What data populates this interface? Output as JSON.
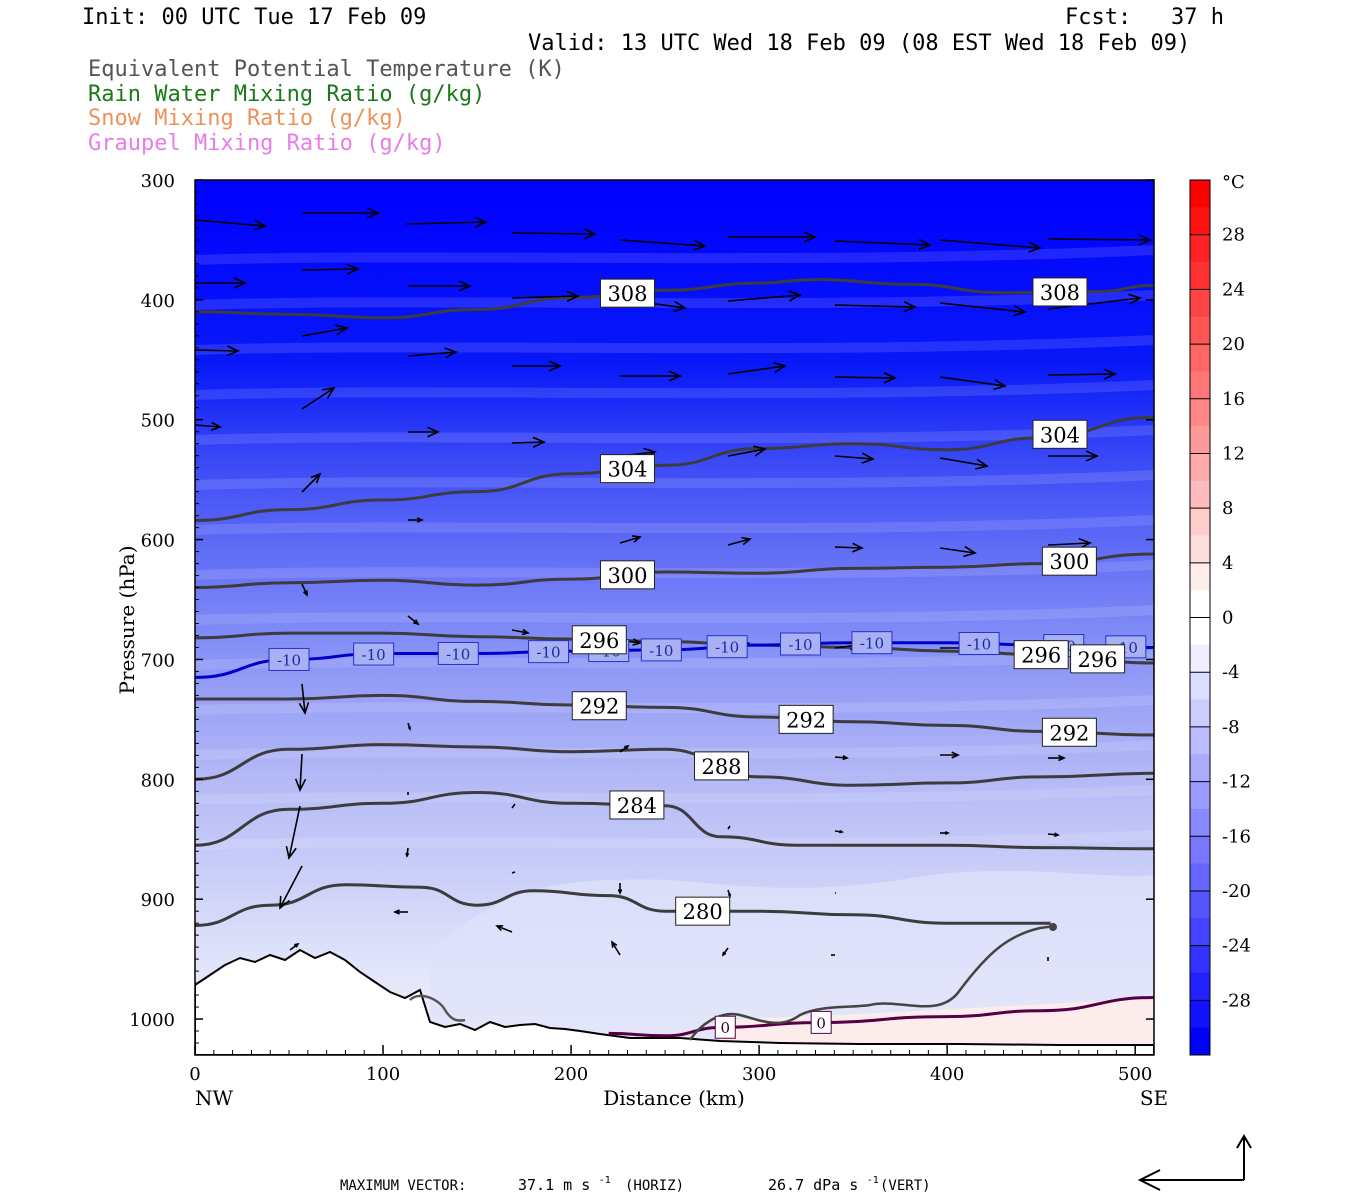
{
  "header": {
    "init": "Init: 00 UTC Tue 17 Feb 09",
    "fcst": "Fcst:   37 h",
    "valid": "Valid: 13 UTC Wed 18 Feb 09 (08 EST Wed 18 Feb 09)",
    "fields": [
      {
        "text": "Equivalent Potential Temperature (K)",
        "color": "#555555"
      },
      {
        "text": "Rain Water Mixing Ratio (g/kg)",
        "color": "#1a7a1a"
      },
      {
        "text": "Snow Mixing Ratio (g/kg)",
        "color": "#f0915a"
      },
      {
        "text": "Graupel Mixing Ratio (g/kg)",
        "color": "#e87de8"
      }
    ]
  },
  "footer": {
    "max_vector_label": "MAXIMUM VECTOR:",
    "horiz_value": "37.1 m s",
    "horiz_exp": "-1",
    "horiz_tag": "(HORIZ)",
    "vert_value": "26.7 dPa s",
    "vert_exp": "-1",
    "vert_tag": "(VERT)"
  },
  "chart_data": {
    "type": "heatmap",
    "xlabel": "Distance (km)",
    "ylabel": "Pressure (hPa)",
    "xlim": [
      0,
      510
    ],
    "ylim": [
      1030,
      300
    ],
    "x_ticks": [
      0,
      100,
      200,
      300,
      400,
      500
    ],
    "y_ticks": [
      300,
      400,
      500,
      600,
      700,
      800,
      900,
      1000
    ],
    "x_end_labels": {
      "left": "NW",
      "right": "SE"
    },
    "colorbar": {
      "unit": "°C",
      "tick_labels": [
        "28",
        "24",
        "20",
        "16",
        "12",
        "8",
        "4",
        "0",
        "-4",
        "-8",
        "-12",
        "-16",
        "-20",
        "-24",
        "-28"
      ],
      "low_color": "#0000ff",
      "zero_color": "#ffffff",
      "high_color": "#ff0000"
    },
    "theta_e_contours": [
      {
        "value": 308,
        "label": "308",
        "points": [
          [
            0,
            410
          ],
          [
            50,
            412
          ],
          [
            100,
            415
          ],
          [
            150,
            408
          ],
          [
            200,
            398
          ],
          [
            250,
            392
          ],
          [
            300,
            386
          ],
          [
            330,
            383
          ],
          [
            380,
            387
          ],
          [
            430,
            394
          ],
          [
            480,
            393
          ],
          [
            510,
            388
          ]
        ]
      },
      {
        "value": 304,
        "label": "304",
        "points": [
          [
            0,
            584
          ],
          [
            50,
            575
          ],
          [
            100,
            567
          ],
          [
            150,
            560
          ],
          [
            200,
            545
          ],
          [
            250,
            538
          ],
          [
            300,
            524
          ],
          [
            350,
            520
          ],
          [
            400,
            525
          ],
          [
            450,
            515
          ],
          [
            510,
            498
          ]
        ]
      },
      {
        "value": 300,
        "label": "300",
        "points": [
          [
            0,
            640
          ],
          [
            50,
            636
          ],
          [
            100,
            634
          ],
          [
            150,
            638
          ],
          [
            200,
            633
          ],
          [
            250,
            627
          ],
          [
            300,
            628
          ],
          [
            350,
            624
          ],
          [
            400,
            623
          ],
          [
            450,
            620
          ],
          [
            510,
            612
          ]
        ]
      },
      {
        "value": 296,
        "label": "296",
        "points": [
          [
            0,
            682
          ],
          [
            50,
            678
          ],
          [
            100,
            678
          ],
          [
            150,
            681
          ],
          [
            200,
            683
          ],
          [
            250,
            685
          ],
          [
            300,
            688
          ],
          [
            350,
            690
          ],
          [
            400,
            693
          ],
          [
            450,
            696
          ],
          [
            510,
            703
          ]
        ]
      },
      {
        "value": 292,
        "label": "292",
        "points": [
          [
            0,
            733
          ],
          [
            50,
            733
          ],
          [
            100,
            730
          ],
          [
            150,
            735
          ],
          [
            200,
            738
          ],
          [
            250,
            740
          ],
          [
            300,
            748
          ],
          [
            350,
            752
          ],
          [
            400,
            755
          ],
          [
            450,
            760
          ],
          [
            510,
            763
          ]
        ]
      },
      {
        "value": 288,
        "label": "288",
        "points": [
          [
            0,
            800
          ],
          [
            50,
            775
          ],
          [
            100,
            771
          ],
          [
            150,
            773
          ],
          [
            200,
            777
          ],
          [
            250,
            775
          ],
          [
            300,
            798
          ],
          [
            350,
            805
          ],
          [
            400,
            803
          ],
          [
            450,
            798
          ],
          [
            510,
            795
          ]
        ]
      },
      {
        "value": 284,
        "label": "284",
        "points": [
          [
            0,
            855
          ],
          [
            50,
            825
          ],
          [
            100,
            820
          ],
          [
            150,
            811
          ],
          [
            200,
            820
          ],
          [
            250,
            822
          ],
          [
            280,
            848
          ],
          [
            320,
            855
          ],
          [
            400,
            855
          ],
          [
            450,
            857
          ],
          [
            510,
            858
          ]
        ]
      },
      {
        "value": 280,
        "label": "280",
        "points": [
          [
            0,
            922
          ],
          [
            40,
            905
          ],
          [
            80,
            888
          ],
          [
            120,
            890
          ],
          [
            150,
            905
          ],
          [
            180,
            893
          ],
          [
            220,
            897
          ],
          [
            250,
            910
          ],
          [
            300,
            910
          ],
          [
            350,
            913
          ],
          [
            400,
            920
          ],
          [
            430,
            920
          ],
          [
            455,
            920
          ]
        ]
      }
    ],
    "temperature_contours": [
      {
        "value": -10,
        "label": "-10",
        "color": "#0000cc",
        "points": [
          [
            0,
            715
          ],
          [
            50,
            700
          ],
          [
            100,
            695
          ],
          [
            150,
            695
          ],
          [
            200,
            693
          ],
          [
            250,
            692
          ],
          [
            300,
            688
          ],
          [
            350,
            686
          ],
          [
            400,
            686
          ],
          [
            450,
            688
          ],
          [
            510,
            690
          ]
        ]
      },
      {
        "value": 0,
        "label": "0",
        "color": "#550044",
        "points": [
          [
            220,
            1012
          ],
          [
            250,
            1014
          ],
          [
            280,
            1007
          ],
          [
            330,
            1003
          ],
          [
            400,
            998
          ],
          [
            450,
            993
          ],
          [
            510,
            982
          ]
        ]
      }
    ],
    "vector_labels": {
      "horizontal": "m s-1",
      "vertical": "dPa s-1"
    }
  }
}
